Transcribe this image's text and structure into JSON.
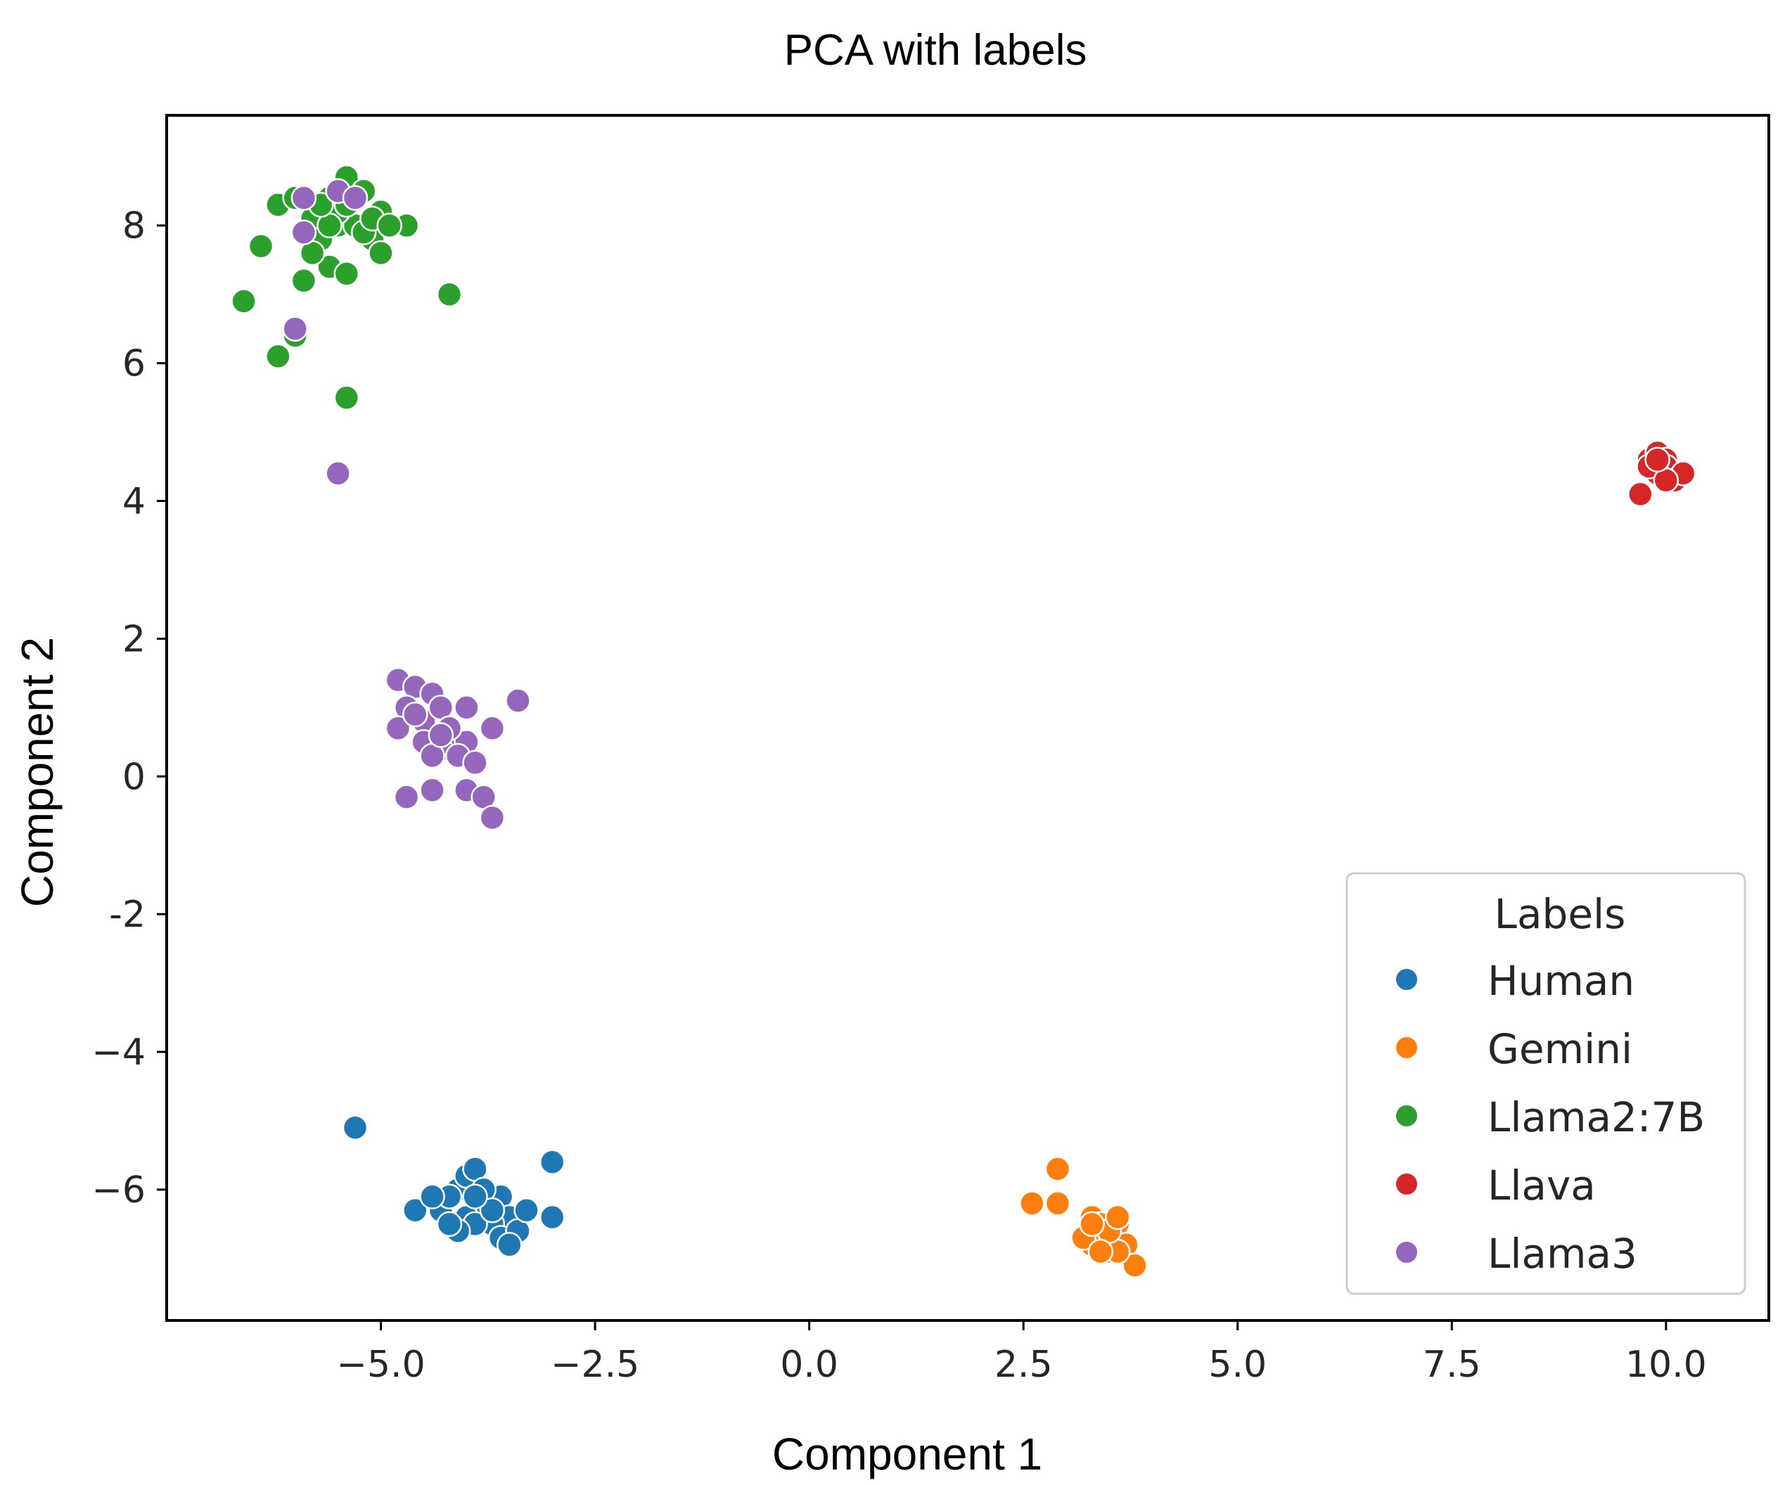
{
  "chart_data": {
    "type": "scatter",
    "title": "PCA with labels",
    "xlabel": "Component 1",
    "ylabel": "Component 2",
    "xlim": [
      -7.5,
      11.2
    ],
    "ylim": [
      -7.9,
      9.6
    ],
    "xticks": [
      -5.0,
      -2.5,
      0.0,
      2.5,
      5.0,
      7.5,
      10.0
    ],
    "xtick_labels": [
      "−5.0",
      "−2.5",
      "0.0",
      "2.5",
      "5.0",
      "7.5",
      "10.0"
    ],
    "yticks": [
      -6,
      -4,
      -2,
      0,
      2,
      4,
      6,
      8
    ],
    "ytick_labels": [
      "−6",
      "−4",
      "-2",
      "0",
      "2",
      "4",
      "6",
      "8"
    ],
    "grid": false,
    "legend": {
      "title": "Labels",
      "placement": "lower-right"
    },
    "series": [
      {
        "name": "Human",
        "color": "#1f77b4",
        "points": [
          [
            -5.3,
            -5.1
          ],
          [
            -4.1,
            -6.0
          ],
          [
            -4.0,
            -5.8
          ],
          [
            -3.9,
            -5.7
          ],
          [
            -3.8,
            -6.2
          ],
          [
            -3.6,
            -6.1
          ],
          [
            -3.5,
            -6.4
          ],
          [
            -3.7,
            -6.5
          ],
          [
            -4.3,
            -6.3
          ],
          [
            -4.2,
            -6.1
          ],
          [
            -4.0,
            -6.4
          ],
          [
            -3.9,
            -6.5
          ],
          [
            -4.1,
            -6.6
          ],
          [
            -3.6,
            -6.7
          ],
          [
            -3.4,
            -6.6
          ],
          [
            -3.3,
            -6.3
          ],
          [
            -3.0,
            -5.6
          ],
          [
            -3.0,
            -6.4
          ],
          [
            -4.6,
            -6.3
          ],
          [
            -4.4,
            -6.1
          ],
          [
            -3.8,
            -6.0
          ],
          [
            -4.2,
            -6.5
          ],
          [
            -3.7,
            -6.3
          ],
          [
            -3.5,
            -6.8
          ],
          [
            -3.9,
            -6.1
          ]
        ]
      },
      {
        "name": "Gemini",
        "color": "#ff7f0e",
        "points": [
          [
            2.6,
            -6.2
          ],
          [
            2.9,
            -5.7
          ],
          [
            2.9,
            -6.2
          ],
          [
            3.3,
            -6.4
          ],
          [
            3.4,
            -6.6
          ],
          [
            3.5,
            -6.7
          ],
          [
            3.6,
            -6.5
          ],
          [
            3.3,
            -6.8
          ],
          [
            3.5,
            -6.9
          ],
          [
            3.7,
            -6.8
          ],
          [
            3.8,
            -7.1
          ],
          [
            3.4,
            -6.5
          ],
          [
            3.2,
            -6.7
          ],
          [
            3.6,
            -6.9
          ],
          [
            3.5,
            -6.6
          ],
          [
            3.3,
            -6.5
          ],
          [
            3.6,
            -6.4
          ],
          [
            3.4,
            -6.9
          ]
        ]
      },
      {
        "name": "Llama2:7B",
        "color": "#2ca02c",
        "points": [
          [
            -6.6,
            6.9
          ],
          [
            -6.2,
            6.1
          ],
          [
            -6.0,
            6.4
          ],
          [
            -5.4,
            5.5
          ],
          [
            -4.2,
            7.0
          ],
          [
            -6.4,
            7.7
          ],
          [
            -6.2,
            8.3
          ],
          [
            -5.9,
            7.2
          ],
          [
            -5.6,
            7.4
          ],
          [
            -5.4,
            7.3
          ],
          [
            -5.8,
            8.1
          ],
          [
            -5.6,
            8.4
          ],
          [
            -5.4,
            8.7
          ],
          [
            -5.2,
            8.5
          ],
          [
            -5.0,
            8.2
          ],
          [
            -4.7,
            8.0
          ],
          [
            -5.9,
            7.9
          ],
          [
            -5.7,
            7.8
          ],
          [
            -5.5,
            8.0
          ],
          [
            -5.3,
            8.0
          ],
          [
            -5.1,
            7.8
          ],
          [
            -5.0,
            7.6
          ],
          [
            -5.3,
            8.4
          ],
          [
            -5.5,
            8.2
          ],
          [
            -5.8,
            7.6
          ],
          [
            -5.2,
            7.9
          ],
          [
            -5.6,
            8.0
          ],
          [
            -5.4,
            8.3
          ],
          [
            -5.1,
            8.1
          ],
          [
            -5.7,
            8.3
          ],
          [
            -4.9,
            8.0
          ],
          [
            -6.0,
            8.4
          ]
        ]
      },
      {
        "name": "Llava",
        "color": "#d62728",
        "points": [
          [
            9.7,
            4.1
          ],
          [
            9.8,
            4.6
          ],
          [
            9.9,
            4.7
          ],
          [
            10.0,
            4.6
          ],
          [
            10.1,
            4.4
          ],
          [
            10.0,
            4.5
          ],
          [
            9.9,
            4.4
          ],
          [
            10.1,
            4.3
          ],
          [
            10.2,
            4.4
          ],
          [
            9.8,
            4.5
          ],
          [
            10.0,
            4.3
          ],
          [
            9.9,
            4.6
          ]
        ]
      },
      {
        "name": "Llama3",
        "color": "#9467bd",
        "points": [
          [
            -5.5,
            4.4
          ],
          [
            -6.0,
            6.5
          ],
          [
            -5.9,
            7.9
          ],
          [
            -5.9,
            8.4
          ],
          [
            -5.5,
            8.5
          ],
          [
            -5.3,
            8.4
          ],
          [
            -4.8,
            1.4
          ],
          [
            -4.6,
            1.3
          ],
          [
            -4.4,
            1.2
          ],
          [
            -4.7,
            1.0
          ],
          [
            -4.5,
            0.8
          ],
          [
            -4.3,
            1.0
          ],
          [
            -4.0,
            1.0
          ],
          [
            -3.4,
            1.1
          ],
          [
            -3.7,
            0.7
          ],
          [
            -4.8,
            0.7
          ],
          [
            -4.5,
            0.5
          ],
          [
            -4.2,
            0.6
          ],
          [
            -4.0,
            0.5
          ],
          [
            -4.3,
            0.4
          ],
          [
            -4.1,
            0.3
          ],
          [
            -3.9,
            0.2
          ],
          [
            -4.4,
            0.3
          ],
          [
            -4.7,
            -0.3
          ],
          [
            -4.4,
            -0.2
          ],
          [
            -4.0,
            -0.2
          ],
          [
            -3.8,
            -0.3
          ],
          [
            -3.7,
            -0.6
          ],
          [
            -4.2,
            0.7
          ],
          [
            -4.6,
            0.9
          ],
          [
            -4.3,
            0.6
          ]
        ]
      }
    ]
  }
}
